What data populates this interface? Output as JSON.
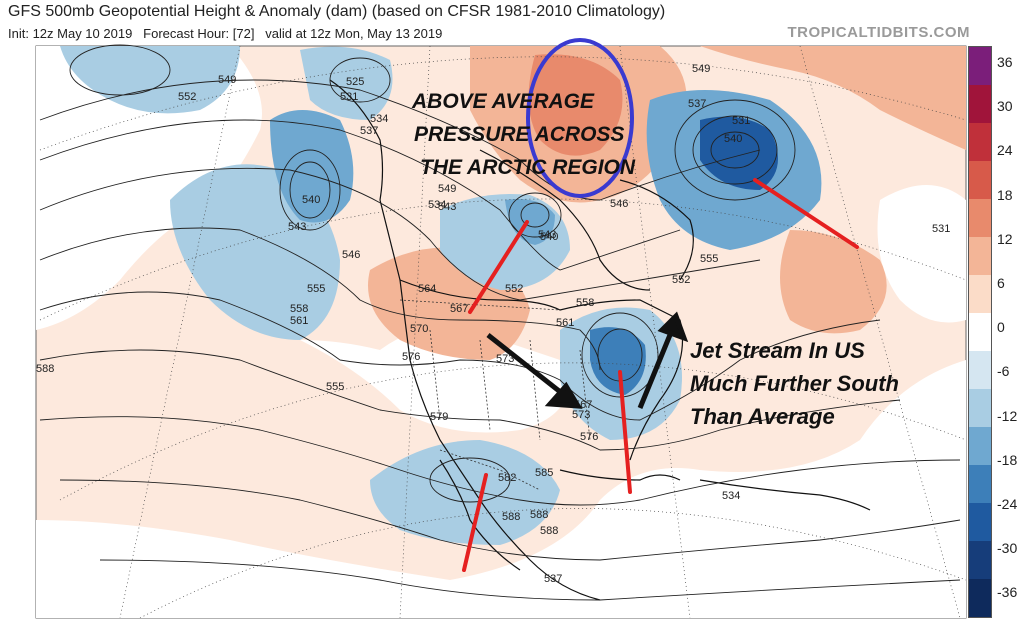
{
  "header": {
    "title": "GFS 500mb Geopotential Height & Anomaly (dam) (based on CFSR 1981-2010 Climatology)",
    "init": "Init: 12z May 10 2019",
    "forecast_hour": "Forecast Hour: [72]",
    "valid": "valid at 12z Mon, May 13 2019",
    "brand": "TROPICALTIDBITS.COM"
  },
  "annotations": {
    "arctic_line1": "ABOVE AVERAGE",
    "arctic_line2": "PRESSURE ACROSS",
    "arctic_line3": "THE ARCTIC REGION",
    "jet_line1": "Jet Stream In US",
    "jet_line2": "Much Further South",
    "jet_line3": "Than Average"
  },
  "colorbar": {
    "ticks": [
      "36",
      "30",
      "24",
      "18",
      "12",
      "6",
      "0",
      "-6",
      "-12",
      "-18",
      "-24",
      "-30",
      "-36"
    ],
    "colors": [
      "#7b1e7a",
      "#a0143a",
      "#c0303a",
      "#d75a4a",
      "#e88a6c",
      "#f3b597",
      "#fbdcc8",
      "#ffffff",
      "#d5e6f1",
      "#a9cde3",
      "#6fa8d0",
      "#3d7fb9",
      "#1f5aa0",
      "#163d7a",
      "#0e2a5c"
    ]
  },
  "contours": {
    "labels": [
      "549",
      "552",
      "525",
      "531",
      "534",
      "537",
      "540",
      "543",
      "546",
      "549",
      "534",
      "537",
      "531",
      "540",
      "543",
      "552",
      "555",
      "558",
      "561",
      "564",
      "567",
      "570",
      "573",
      "576",
      "555",
      "558",
      "561",
      "567",
      "573",
      "576",
      "579",
      "582",
      "585",
      "588",
      "588",
      "588",
      "588",
      "531",
      "534",
      "537",
      "540",
      "543",
      "546",
      "549",
      "552",
      "555"
    ]
  },
  "colors": {
    "above_annotation": "#111111",
    "red_lines": "#e52020",
    "blue_circle": "#3a3ad0",
    "arrows": "#111111"
  }
}
